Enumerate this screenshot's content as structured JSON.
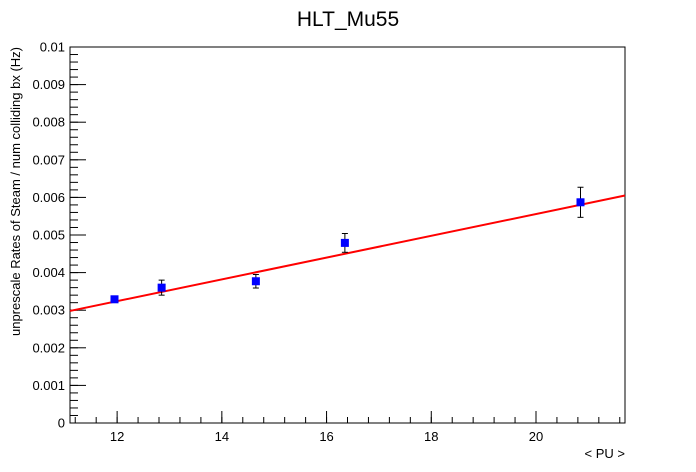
{
  "chart_data": {
    "type": "scatter",
    "title": "HLT_Mu55",
    "xlabel": "< PU >",
    "ylabel": "unprescale Rates of Steam / num colliding bx (Hz)",
    "xlim": [
      11.1,
      21.7
    ],
    "ylim": [
      0,
      0.01
    ],
    "x_ticks": [
      12,
      14,
      16,
      18,
      20
    ],
    "x_tick_labels": [
      "12",
      "14",
      "16",
      "18",
      "20"
    ],
    "y_ticks": [
      0,
      0.001,
      0.002,
      0.003,
      0.004,
      0.005,
      0.006,
      0.007,
      0.008,
      0.009,
      0.01
    ],
    "y_tick_labels": [
      "0",
      "0.001",
      "0.002",
      "0.003",
      "0.004",
      "0.005",
      "0.006",
      "0.007",
      "0.008",
      "0.009",
      "0.01"
    ],
    "grid": false,
    "legend": "none",
    "series": [
      {
        "x": [
          11.95,
          12.85,
          14.65,
          16.35,
          20.85
        ],
        "y": [
          0.00329,
          0.0036,
          0.00377,
          0.00479,
          0.00587
        ],
        "yerr": [
          8e-05,
          0.0002,
          0.00018,
          0.00025,
          0.0004
        ],
        "color": "#0000ff",
        "marker": "square"
      }
    ],
    "fit": {
      "x": [
        11.1,
        21.7
      ],
      "y": [
        0.00298,
        0.00605
      ],
      "color": "#ff0000"
    }
  }
}
